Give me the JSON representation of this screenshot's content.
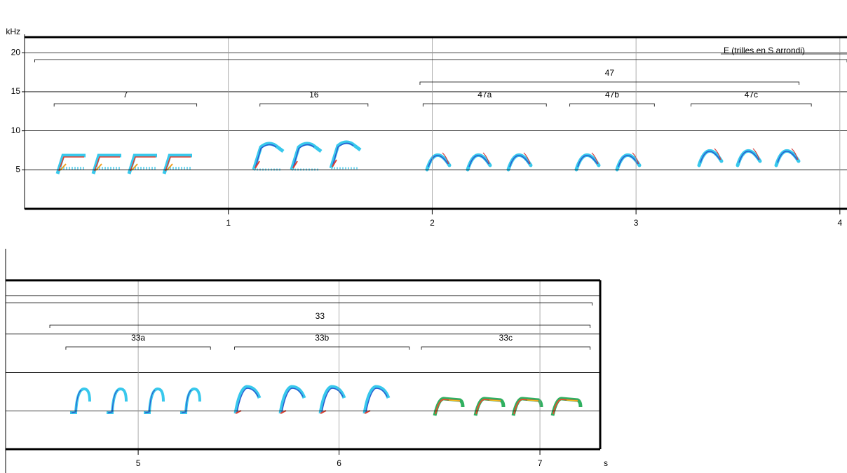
{
  "chart_data": [
    {
      "type": "spectrogram",
      "y_label": "kHz",
      "xlim": [
        0,
        4.035
      ],
      "xticks": [
        1,
        2,
        3,
        4
      ],
      "ylim": [
        0,
        22
      ],
      "yticks": [
        5,
        10,
        15,
        20
      ],
      "show_ytick_labels": true,
      "annotations": [
        {
          "label": "E (trilles en S arrondi)",
          "start": 0.05,
          "end": 4.035
        },
        {
          "label": "47",
          "start": 1.94,
          "end": 3.8
        },
        {
          "label": "7",
          "start": 0.145,
          "end": 0.845
        },
        {
          "label": "16",
          "start": 1.155,
          "end": 1.685
        },
        {
          "label": "47a",
          "start": 1.955,
          "end": 2.56
        },
        {
          "label": "47b",
          "start": 2.675,
          "end": 3.09
        },
        {
          "label": "47c",
          "start": 3.27,
          "end": 3.86
        }
      ]
    },
    {
      "type": "spectrogram",
      "x_label": "s",
      "xlim": [
        4.34,
        7.3
      ],
      "xticks": [
        5,
        6,
        7
      ],
      "ylim": [
        0,
        22
      ],
      "yticks": [
        5,
        10,
        15,
        20
      ],
      "show_ytick_labels": false,
      "annotations": [
        {
          "start": 4.34,
          "end": 7.26
        },
        {
          "label": "33",
          "start": 4.56,
          "end": 7.25
        },
        {
          "label": "33a",
          "start": 4.64,
          "end": 5.36
        },
        {
          "label": "33b",
          "start": 5.48,
          "end": 6.35
        },
        {
          "label": "33c",
          "start": 6.41,
          "end": 7.25
        }
      ]
    }
  ]
}
